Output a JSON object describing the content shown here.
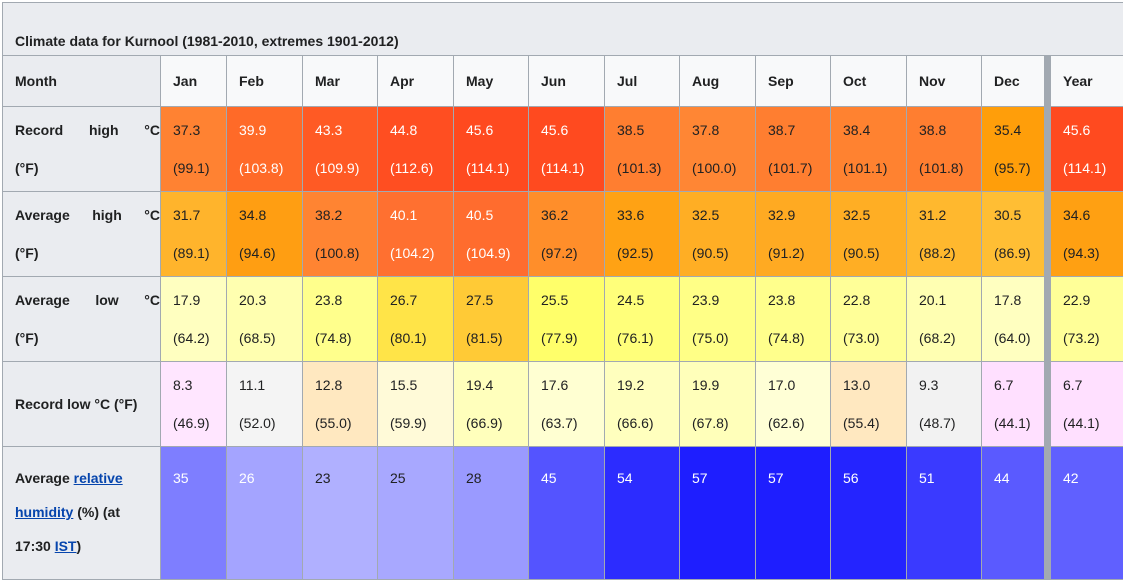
{
  "caption": "Climate data for Kurnool (1981-2010, extremes 1901-2012)",
  "header": {
    "month_label": "Month",
    "months": [
      "Jan",
      "Feb",
      "Mar",
      "Apr",
      "May",
      "Jun",
      "Jul",
      "Aug",
      "Sep",
      "Oct",
      "Nov",
      "Dec",
      "Year"
    ]
  },
  "record_high": {
    "label_word1": "Record",
    "label_word2": "high",
    "label_unit": "°C",
    "label_unit2": "(°F)",
    "c": [
      "37.3",
      "39.9",
      "43.3",
      "44.8",
      "45.6",
      "45.6",
      "38.5",
      "37.8",
      "38.7",
      "38.4",
      "38.8",
      "35.4",
      "45.6"
    ],
    "f": [
      "(99.1)",
      "(103.8)",
      "(109.9)",
      "(112.6)",
      "(114.1)",
      "(114.1)",
      "(101.3)",
      "(100.0)",
      "(101.7)",
      "(101.1)",
      "(101.8)",
      "(95.7)",
      "(114.1)"
    ],
    "colors": [
      "#ff8232",
      "#ff6a28",
      "#ff5a24",
      "#ff4e21",
      "#ff4a1f",
      "#ff4a1f",
      "#ff7e30",
      "#ff8634",
      "#ff7e30",
      "#ff8230",
      "#ff7e30",
      "#ff9e0a",
      "#ff4a1f"
    ],
    "text_light": [
      false,
      true,
      true,
      true,
      true,
      true,
      false,
      false,
      false,
      false,
      false,
      false,
      true
    ]
  },
  "avg_high": {
    "label_word1": "Average",
    "label_word2": "high",
    "label_unit": "°C",
    "label_unit2": "(°F)",
    "c": [
      "31.7",
      "34.8",
      "38.2",
      "40.1",
      "40.5",
      "36.2",
      "33.6",
      "32.5",
      "32.9",
      "32.5",
      "31.2",
      "30.5",
      "34.6"
    ],
    "f": [
      "(89.1)",
      "(94.6)",
      "(100.8)",
      "(104.2)",
      "(104.9)",
      "(97.2)",
      "(92.5)",
      "(90.5)",
      "(91.2)",
      "(90.5)",
      "(88.2)",
      "(86.9)",
      "(94.3)"
    ],
    "colors": [
      "#ffb42c",
      "#ff9e12",
      "#ff8432",
      "#ff7030",
      "#ff6c2e",
      "#ff8e2a",
      "#ffa214",
      "#ffae24",
      "#ffaa22",
      "#ffae24",
      "#ffb82e",
      "#ffbe34",
      "#ffa012"
    ],
    "text_light": [
      false,
      false,
      false,
      true,
      true,
      false,
      false,
      false,
      false,
      false,
      false,
      false,
      false
    ]
  },
  "avg_low": {
    "label_word1": "Average",
    "label_word2": "low",
    "label_unit": "°C",
    "label_unit2": "(°F)",
    "c": [
      "17.9",
      "20.3",
      "23.8",
      "26.7",
      "27.5",
      "25.5",
      "24.5",
      "23.9",
      "23.8",
      "22.8",
      "20.1",
      "17.8",
      "22.9"
    ],
    "f": [
      "(64.2)",
      "(68.5)",
      "(74.8)",
      "(80.1)",
      "(81.5)",
      "(77.9)",
      "(76.1)",
      "(75.0)",
      "(74.8)",
      "(73.0)",
      "(68.2)",
      "(64.0)",
      "(73.2)"
    ],
    "colors": [
      "#ffffc0",
      "#ffffb0",
      "#ffff8c",
      "#ffe448",
      "#ffca36",
      "#ffff6a",
      "#ffff7a",
      "#ffff86",
      "#ffff8c",
      "#ffff98",
      "#ffffb2",
      "#ffffc0",
      "#ffff98"
    ],
    "text_light": [
      false,
      false,
      false,
      false,
      false,
      false,
      false,
      false,
      false,
      false,
      false,
      false,
      false
    ]
  },
  "record_low": {
    "label": "Record low °C (°F)",
    "c": [
      "8.3",
      "11.1",
      "12.8",
      "15.5",
      "19.4",
      "17.6",
      "19.2",
      "19.9",
      "17.0",
      "13.0",
      "9.3",
      "6.7",
      "6.7"
    ],
    "f": [
      "(46.9)",
      "(52.0)",
      "(55.0)",
      "(59.9)",
      "(66.9)",
      "(63.7)",
      "(66.6)",
      "(67.8)",
      "(62.6)",
      "(55.4)",
      "(48.7)",
      "(44.1)",
      "(44.1)"
    ],
    "colors": [
      "#ffe6ff",
      "#f4f4f4",
      "#ffe8c0",
      "#fffad8",
      "#ffffbc",
      "#ffffd2",
      "#ffffbe",
      "#ffffba",
      "#ffffd6",
      "#ffe8c0",
      "#f2f2f2",
      "#ffe0ff",
      "#ffe0ff"
    ],
    "text_light": [
      false,
      false,
      false,
      false,
      false,
      false,
      false,
      false,
      false,
      false,
      false,
      false,
      false
    ]
  },
  "humidity": {
    "label_prefix": "Average ",
    "link1": "relative",
    "link2": "humidity",
    "label_mid": " (%) (at",
    "label_time": "17:30 ",
    "link3": "IST",
    "label_suffix": ")",
    "values": [
      "35",
      "26",
      "23",
      "25",
      "28",
      "45",
      "54",
      "57",
      "57",
      "56",
      "51",
      "44",
      "42"
    ],
    "colors": [
      "#7e7eff",
      "#a4a4ff",
      "#b0b0ff",
      "#a8a8ff",
      "#9a9aff",
      "#5454ff",
      "#2c2cff",
      "#1e1eff",
      "#1e1eff",
      "#2424ff",
      "#3a3aff",
      "#5a5aff",
      "#6060ff"
    ],
    "text_light": [
      true,
      true,
      false,
      false,
      false,
      true,
      true,
      true,
      true,
      true,
      true,
      true,
      true
    ]
  }
}
